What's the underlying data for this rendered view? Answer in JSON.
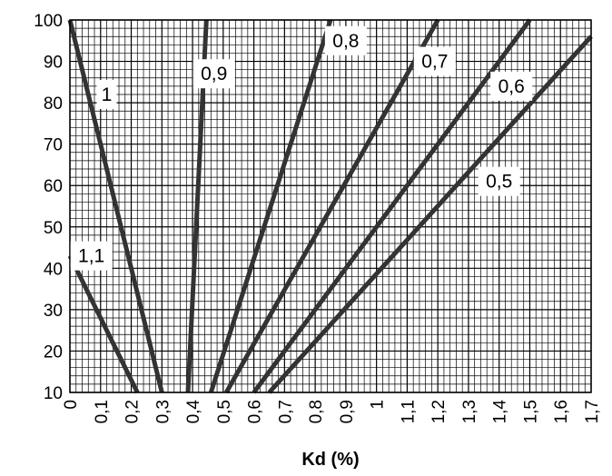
{
  "chart_data": {
    "type": "line",
    "xlabel": "Kd (%)",
    "ylabel": "",
    "xlim": [
      0,
      1.7
    ],
    "ylim": [
      10,
      100
    ],
    "x_ticks": [
      "0",
      "0,1",
      "0,2",
      "0,3",
      "0,4",
      "0,5",
      "0,6",
      "0,7",
      "0,8",
      "0,9",
      "1",
      "1,1",
      "1,2",
      "1,3",
      "1,4",
      "1,5",
      "1,6",
      "1,7"
    ],
    "y_ticks": [
      "10",
      "20",
      "30",
      "40",
      "50",
      "60",
      "70",
      "80",
      "90",
      "100"
    ],
    "grid": true,
    "line_color": "#333333",
    "series": [
      {
        "name": "1,1",
        "label_at": [
          0.07,
          43
        ],
        "points": [
          [
            0.0,
            43
          ],
          [
            0.22,
            10
          ]
        ]
      },
      {
        "name": "1",
        "label_at": [
          0.12,
          82
        ],
        "points": [
          [
            0.0,
            100
          ],
          [
            0.3,
            10
          ]
        ]
      },
      {
        "name": "0,9",
        "label_at": [
          0.47,
          87
        ],
        "points": [
          [
            0.385,
            10
          ],
          [
            0.445,
            100
          ]
        ]
      },
      {
        "name": "0,8",
        "label_at": [
          0.9,
          95
        ],
        "points": [
          [
            0.46,
            10
          ],
          [
            0.85,
            100
          ]
        ]
      },
      {
        "name": "0,7",
        "label_at": [
          1.19,
          90
        ],
        "points": [
          [
            0.51,
            10
          ],
          [
            1.2,
            100
          ]
        ]
      },
      {
        "name": "0,6",
        "label_at": [
          1.44,
          84
        ],
        "points": [
          [
            0.6,
            10
          ],
          [
            1.5,
            100
          ]
        ]
      },
      {
        "name": "0,5",
        "label_at": [
          1.4,
          61
        ],
        "points": [
          [
            0.65,
            10
          ],
          [
            1.7,
            96
          ]
        ]
      }
    ]
  }
}
